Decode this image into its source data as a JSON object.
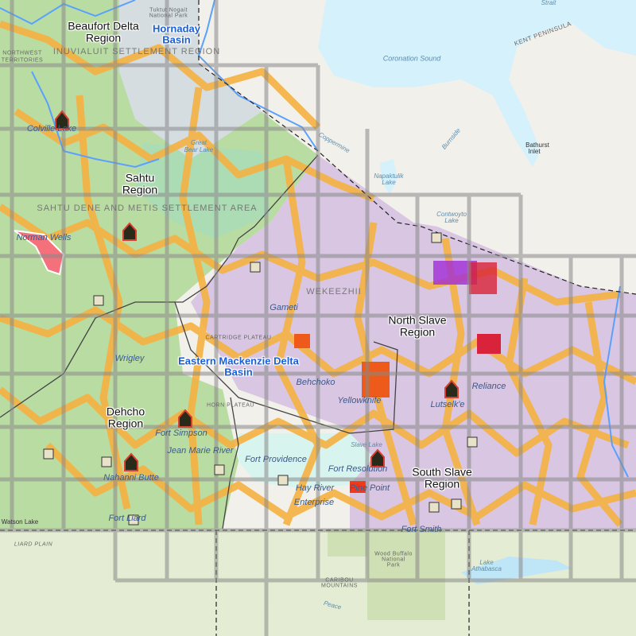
{
  "map": {
    "colors": {
      "basemap_land": "#f2f0ea",
      "water": "#d5f1fb",
      "south_land": "#e4edd3",
      "west_zone": "#b9dca2",
      "east_zone": "#d9c6e2",
      "roads_buffer": "#f5b142",
      "grid": "#8a8a8a",
      "basin_outline": "#5aa0ff",
      "region_label": "#111111",
      "basin_label": "#1a5fd8"
    },
    "region_labels": [
      {
        "name": "Beaufort Delta",
        "suffix": "Region"
      },
      {
        "name": "Sahtu",
        "suffix": "Region"
      },
      {
        "name": "North Slave",
        "suffix": "Region"
      },
      {
        "name": "Dehcho",
        "suffix": "Region"
      },
      {
        "name": "South Slave",
        "suffix": "Region"
      }
    ],
    "basin_labels": [
      {
        "line1": "Hornaday",
        "line2": "Basin"
      },
      {
        "line1": "Eastern Mackenzie Delta",
        "line2": "Basin"
      }
    ],
    "communities": [
      "Colville Lake",
      "Norman Wells",
      "Gameti",
      "Wrigley",
      "Behchoko",
      "Yellowknife",
      "Lutselk'e",
      "Reliance",
      "Fort Simpson",
      "Jean Marie River",
      "Fort Providence",
      "Nahanni Butte",
      "Fort Liard",
      "Fort Resolution",
      "Hay River",
      "Pine Point",
      "Enterprise",
      "Fort Smith"
    ],
    "basemap_labels": {
      "water": [
        "Coronation Sound",
        "Strait",
        "Bathurst",
        "Inlet",
        "Napaktulik",
        "Lake",
        "Contwoyto",
        "Lake",
        "Great",
        "Bear Lake",
        "Slave Lake",
        "Lake",
        "Athabasca",
        "Burnside",
        "Coppermine",
        "Peace"
      ],
      "terrain": [
        "KENT PENINSULA",
        "CARIBOU MOUNTAINS",
        "LIARD PLAIN",
        "Wood Buffalo",
        "National",
        "Park",
        "Tuktut Nogait",
        "National Park"
      ],
      "areas": [
        "INUVIALUIT SETTLEMENT REGION",
        "SAHTU DENE AND METIS SETTLEMENT AREA",
        "WEKEEZHII",
        "NORTHWEST",
        "TERRITORIES",
        "CARTRIDGE PLATEAU",
        "HORN PLATEAU"
      ],
      "towns": [
        "Watson Lake"
      ]
    },
    "icons": [
      "oil-well-icon",
      "mine-site-icon",
      "community-marker-icon"
    ]
  }
}
